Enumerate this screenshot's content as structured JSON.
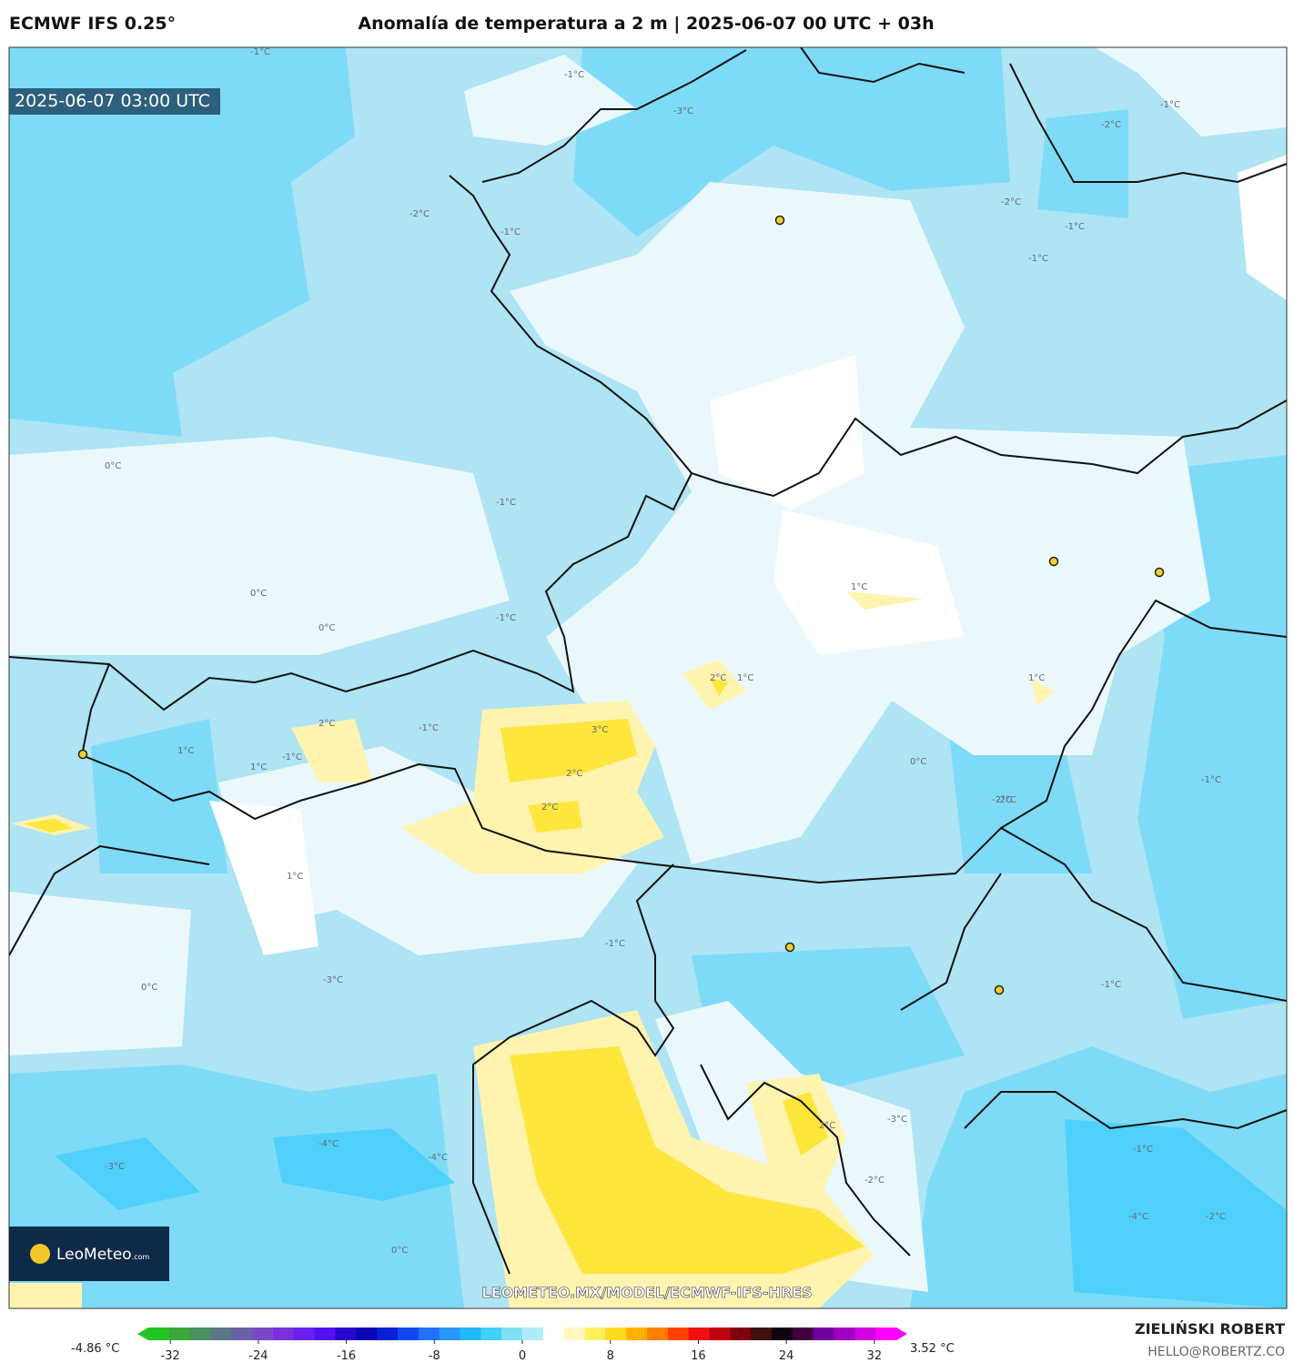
{
  "header": {
    "model": "ECMWF IFS 0.25°",
    "title": "Anomalía de temperatura a 2 m | 2025-06-07 00 UTC + 03h"
  },
  "map": {
    "timestamp": "2025-06-07 03:00 UTC",
    "logo_main": "LeoMeteo",
    "logo_suffix": ".com",
    "url": "LEOMETEO.MX/MODEL/ECMWF-IFS-HRES",
    "contour_labels": [
      "-1°C",
      "-1°C",
      "-3°C",
      "-2°C",
      "-1°C",
      "-2°C",
      "-1°C",
      "-1°C",
      "-2°C",
      "-1°C",
      "0°C",
      "-1°C",
      "0°C",
      "0°C",
      "-1°C",
      "1°C",
      "2°C",
      "1°C",
      "-1°C",
      "2°C",
      "3°C",
      "2°C",
      "2°C",
      "1°C",
      "1°C",
      "-1°C",
      "1°C",
      "0°C",
      "-2°C",
      "-1°C",
      "-3°C",
      "-4°C",
      "-4°C",
      "-3°C",
      "0°C",
      "2°C",
      "-2°C",
      "-3°C",
      "-1°C",
      "-4°C",
      "-1°C",
      "-2°C",
      "1°C",
      "0°C",
      "-1°C",
      "-2°C"
    ]
  },
  "colorbar": {
    "ticks": [
      -32,
      -24,
      -16,
      -8,
      0,
      8,
      16,
      24,
      32
    ],
    "range": [
      -34,
      34
    ],
    "colors": [
      "#22c422",
      "#3aa83a",
      "#4a9060",
      "#5a7888",
      "#6a60a8",
      "#7a48c8",
      "#7a30e0",
      "#6a20f0",
      "#5010f0",
      "#2808d0",
      "#0808b8",
      "#0820d8",
      "#1048f0",
      "#2070f8",
      "#2898f8",
      "#20b8f8",
      "#40d0f8",
      "#80e0f8",
      "#b0ecf8",
      "#ffffff",
      "#fff8c0",
      "#fff060",
      "#ffd820",
      "#ffb000",
      "#ff8000",
      "#ff4000",
      "#f01010",
      "#c00010",
      "#800010",
      "#401010",
      "#100010",
      "#400040",
      "#7000a0",
      "#a000c0",
      "#d000e0",
      "#ff00ff"
    ],
    "min_label": "-4.86 °C",
    "max_label": "3.52 °C"
  },
  "footer": {
    "author": "ZIELIŃSKI ROBERT",
    "email": "HELLO@ROBERTZ.CO"
  }
}
